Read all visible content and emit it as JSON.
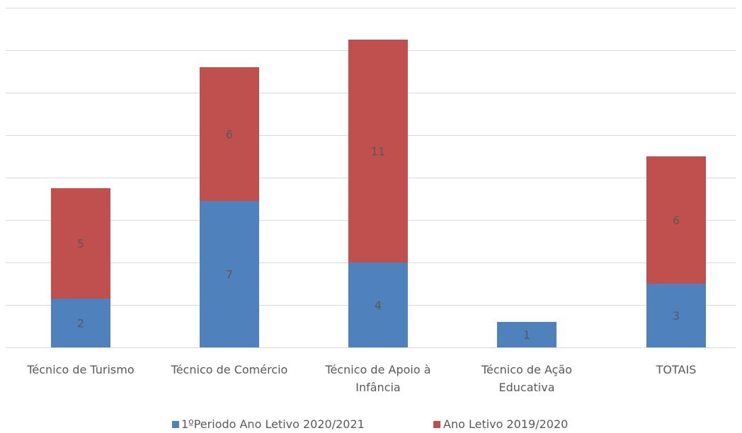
{
  "chart_data": {
    "type": "bar",
    "stacked": true,
    "categories": [
      [
        "Técnico de Turismo"
      ],
      [
        "Técnico de Comércio"
      ],
      [
        "Técnico de Apoio à",
        "Infância"
      ],
      [
        "Técnico de Ação",
        "Educativa"
      ],
      [
        "TOTAIS"
      ]
    ],
    "series": [
      {
        "name": "1ºPeriodo Ano Letivo 2020/2021",
        "color": "#4f81bd",
        "values": [
          2,
          7,
          4,
          1,
          3
        ]
      },
      {
        "name": "Ano Letivo 2019/2020",
        "color": "#c0504d",
        "values": [
          5,
          6,
          11,
          0,
          6
        ]
      }
    ],
    "segment_heights": [
      [
        2.3,
        6.9,
        4.0,
        1.2,
        3.0
      ],
      [
        5.2,
        6.3,
        10.5,
        0,
        6.0
      ]
    ],
    "ylim": [
      0,
      16
    ],
    "gridlines": true,
    "legend": "bottom",
    "grid_color": "#d9d9d9",
    "label_color": "#595959"
  }
}
